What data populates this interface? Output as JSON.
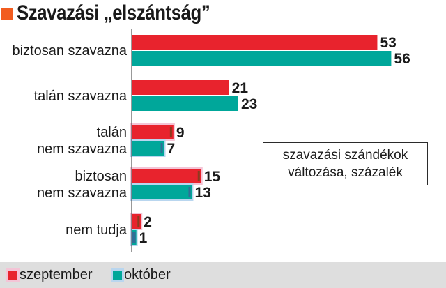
{
  "title": "Szavazási „elszántság”",
  "colors": {
    "accent": "#f25c1f",
    "szeptember": "#e8232d",
    "oktober": "#00a79a",
    "legend_bg": "#dedede",
    "shadow_pink": "#f4c4d6",
    "shadow_blue": "#b9d6ef",
    "inner_sept": "#8c3b1f",
    "inner_okt": "#2f6e96"
  },
  "note": {
    "line1": "szavazási szándékok",
    "line2": "változása, százalék"
  },
  "legend": [
    {
      "name": "szeptember",
      "color": "#e8232d"
    },
    {
      "name": "október",
      "color": "#00a79a"
    }
  ],
  "chart_data": {
    "type": "bar",
    "orientation": "horizontal",
    "categories": [
      [
        "biztosan szavazna"
      ],
      [
        "talán szavazna"
      ],
      [
        "talán",
        "nem szavazna"
      ],
      [
        "biztosan",
        "nem szavazna"
      ],
      [
        "nem tudja"
      ]
    ],
    "series": [
      {
        "name": "szeptember",
        "values": [
          53,
          21,
          9,
          15,
          2
        ]
      },
      {
        "name": "október",
        "values": [
          56,
          23,
          7,
          13,
          1
        ]
      }
    ],
    "data_labels": true,
    "grid": false,
    "legend_position": "bottom-left"
  }
}
